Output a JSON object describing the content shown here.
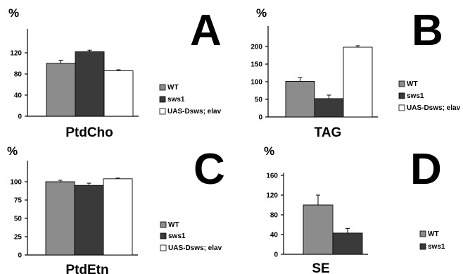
{
  "colors": {
    "WT": "#8c8c8c",
    "sws1": "#3a3a3a",
    "UAS-Dsws; elav": "#ffffff"
  },
  "chart_data": [
    {
      "type": "bar",
      "panel": "A",
      "ylabel": "%",
      "xlabel": "PtdCho",
      "ylim": [
        0,
        160
      ],
      "yticks": [
        0,
        40,
        80,
        120
      ],
      "grid": false,
      "legend_position": "right",
      "series": [
        {
          "name": "WT",
          "values": [
            100
          ],
          "errors": [
            6
          ]
        },
        {
          "name": "sws1",
          "values": [
            122
          ],
          "errors": [
            3
          ]
        },
        {
          "name": "UAS-Dsws; elav",
          "values": [
            86
          ],
          "errors": [
            2
          ]
        }
      ]
    },
    {
      "type": "bar",
      "panel": "B",
      "ylabel": "%",
      "xlabel": "TAG",
      "ylim": [
        0,
        250
      ],
      "yticks": [
        0,
        50,
        100,
        150,
        200
      ],
      "grid": false,
      "legend_position": "right",
      "series": [
        {
          "name": "WT",
          "values": [
            101
          ],
          "errors": [
            10
          ]
        },
        {
          "name": "sws1",
          "values": [
            52
          ],
          "errors": [
            10
          ]
        },
        {
          "name": "UAS-Dsws; elav",
          "values": [
            198
          ],
          "errors": [
            4
          ]
        }
      ]
    },
    {
      "type": "bar",
      "panel": "C",
      "ylabel": "%",
      "xlabel": "PtdEtn",
      "ylim": [
        0,
        125
      ],
      "yticks": [
        0,
        25,
        50,
        75,
        100
      ],
      "grid": false,
      "legend_position": "right",
      "series": [
        {
          "name": "WT",
          "values": [
            100
          ],
          "errors": [
            2
          ]
        },
        {
          "name": "sws1",
          "values": [
            95
          ],
          "errors": [
            3
          ]
        },
        {
          "name": "UAS-Dsws; elav",
          "values": [
            104
          ],
          "errors": [
            1
          ]
        }
      ]
    },
    {
      "type": "bar",
      "panel": "D",
      "ylabel": "%",
      "xlabel": "SE",
      "ylim": [
        0,
        160
      ],
      "yticks": [
        0,
        40,
        80,
        120,
        160
      ],
      "grid": false,
      "legend_position": "right",
      "series": [
        {
          "name": "WT",
          "values": [
            100
          ],
          "errors": [
            20
          ]
        },
        {
          "name": "sws1",
          "values": [
            43
          ],
          "errors": [
            9
          ]
        }
      ]
    }
  ]
}
